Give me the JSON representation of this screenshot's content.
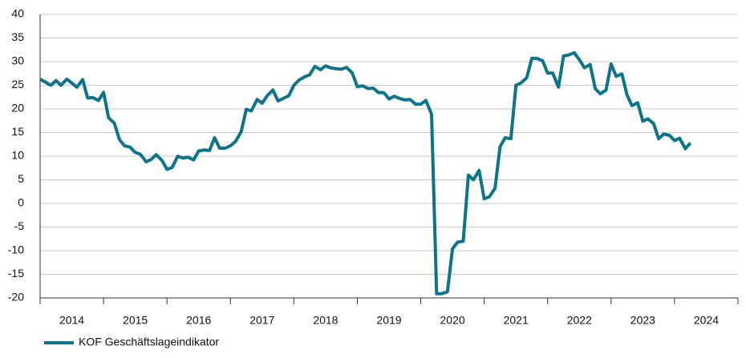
{
  "chart_data": {
    "type": "line",
    "x": [
      2014.0,
      2014.08,
      2014.17,
      2014.25,
      2014.33,
      2014.42,
      2014.5,
      2014.58,
      2014.67,
      2014.75,
      2014.83,
      2014.92,
      2015.0,
      2015.08,
      2015.17,
      2015.25,
      2015.33,
      2015.42,
      2015.5,
      2015.58,
      2015.67,
      2015.75,
      2015.83,
      2015.92,
      2016.0,
      2016.08,
      2016.17,
      2016.25,
      2016.33,
      2016.42,
      2016.5,
      2016.58,
      2016.67,
      2016.75,
      2016.83,
      2016.92,
      2017.0,
      2017.08,
      2017.17,
      2017.25,
      2017.33,
      2017.42,
      2017.5,
      2017.58,
      2017.67,
      2017.75,
      2017.83,
      2017.92,
      2018.0,
      2018.08,
      2018.17,
      2018.25,
      2018.33,
      2018.42,
      2018.5,
      2018.58,
      2018.67,
      2018.75,
      2018.83,
      2018.92,
      2019.0,
      2019.08,
      2019.17,
      2019.25,
      2019.33,
      2019.42,
      2019.5,
      2019.58,
      2019.67,
      2019.75,
      2019.83,
      2019.92,
      2020.0,
      2020.08,
      2020.17,
      2020.25,
      2020.33,
      2020.42,
      2020.5,
      2020.58,
      2020.67,
      2020.75,
      2020.83,
      2020.92,
      2021.0,
      2021.08,
      2021.17,
      2021.25,
      2021.33,
      2021.42,
      2021.5,
      2021.58,
      2021.67,
      2021.75,
      2021.83,
      2021.92,
      2022.0,
      2022.08,
      2022.17,
      2022.25,
      2022.33,
      2022.42,
      2022.5,
      2022.58,
      2022.67,
      2022.75,
      2022.83,
      2022.92,
      2023.0,
      2023.08,
      2023.17,
      2023.25,
      2023.33,
      2023.42,
      2023.5,
      2023.58,
      2023.67,
      2023.75,
      2023.83,
      2023.92,
      2024.0,
      2024.08,
      2024.17,
      2024.25
    ],
    "series": [
      {
        "name": "KOF Geschäftslageindikator",
        "color": "#0e7489",
        "values": [
          26.3,
          25.7,
          25.0,
          26.0,
          25.0,
          26.3,
          25.5,
          24.6,
          26.2,
          22.3,
          22.4,
          21.8,
          23.5,
          18.1,
          17.0,
          13.5,
          12.2,
          11.9,
          10.8,
          10.4,
          8.8,
          9.3,
          10.3,
          9.1,
          7.2,
          7.6,
          10.0,
          9.6,
          9.8,
          9.2,
          11.1,
          11.3,
          11.2,
          13.9,
          11.7,
          11.7,
          12.2,
          13.1,
          15.2,
          19.9,
          19.6,
          22.0,
          21.2,
          22.8,
          24.0,
          21.7,
          22.2,
          22.8,
          25.0,
          26.1,
          26.8,
          27.2,
          29.0,
          28.3,
          29.1,
          28.7,
          28.5,
          28.4,
          28.8,
          27.6,
          24.7,
          24.9,
          24.3,
          24.4,
          23.5,
          23.4,
          22.1,
          22.7,
          22.2,
          21.9,
          22.0,
          21.0,
          21.0,
          21.8,
          18.9,
          -19.1,
          -19.1,
          -18.7,
          -9.6,
          -8.2,
          -8.0,
          6.0,
          5.0,
          7.0,
          1.0,
          1.4,
          3.2,
          12.0,
          13.9,
          13.7,
          25.0,
          25.5,
          26.6,
          30.7,
          30.7,
          30.2,
          27.6,
          27.6,
          24.6,
          31.2,
          31.4,
          31.9,
          30.4,
          28.7,
          29.4,
          24.3,
          23.2,
          24.0,
          29.5,
          26.9,
          27.4,
          23.0,
          20.7,
          21.3,
          17.4,
          17.9,
          16.9,
          13.7,
          14.7,
          14.4,
          13.3,
          13.8,
          11.6,
          12.8
        ]
      }
    ],
    "xlim": [
      2014,
      2025
    ],
    "xticks": [
      {
        "value": 2014.5,
        "label": "2014"
      },
      {
        "value": 2015.5,
        "label": "2015"
      },
      {
        "value": 2016.5,
        "label": "2016"
      },
      {
        "value": 2017.5,
        "label": "2017"
      },
      {
        "value": 2018.5,
        "label": "2018"
      },
      {
        "value": 2019.5,
        "label": "2019"
      },
      {
        "value": 2020.5,
        "label": "2020"
      },
      {
        "value": 2021.5,
        "label": "2021"
      },
      {
        "value": 2022.5,
        "label": "2022"
      },
      {
        "value": 2023.5,
        "label": "2023"
      },
      {
        "value": 2024.5,
        "label": "2024"
      }
    ],
    "ylim": [
      -20,
      40
    ],
    "yticks": [
      -20,
      -15,
      -10,
      -5,
      0,
      5,
      10,
      15,
      20,
      25,
      30,
      35,
      40
    ],
    "grid": true,
    "legend": "bottom-left"
  }
}
